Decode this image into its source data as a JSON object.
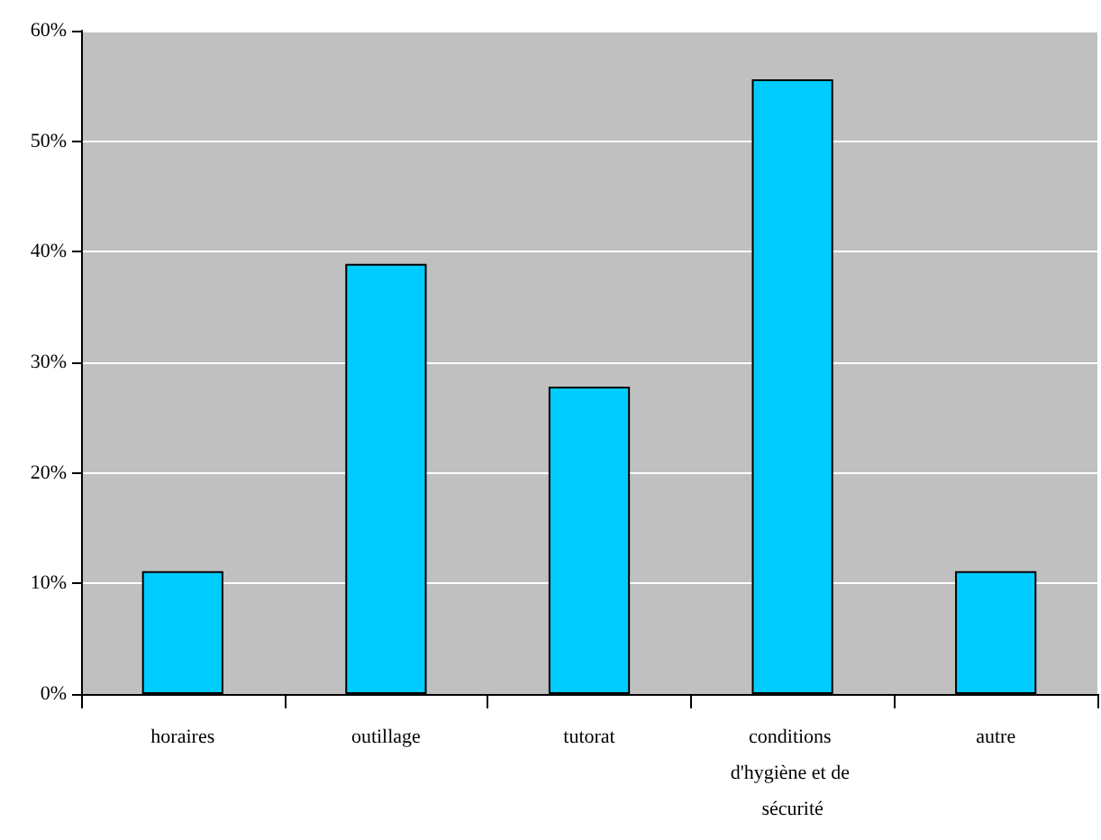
{
  "chart_data": {
    "type": "bar",
    "categories": [
      "horaires",
      "outillage",
      "tutorat",
      "conditions d'hygiène et de sécurité",
      "autre"
    ],
    "values": [
      11.1,
      38.9,
      27.8,
      55.6,
      11.1
    ],
    "color": "#00ccff",
    "ylim": [
      0,
      60
    ],
    "yticks": [
      {
        "value": 0,
        "label": "0%"
      },
      {
        "value": 10,
        "label": "10%"
      },
      {
        "value": 20,
        "label": "20%"
      },
      {
        "value": 30,
        "label": "30%"
      },
      {
        "value": 40,
        "label": "40%"
      },
      {
        "value": 50,
        "label": "50%"
      },
      {
        "value": 60,
        "label": "60%"
      }
    ],
    "grid": "y"
  }
}
